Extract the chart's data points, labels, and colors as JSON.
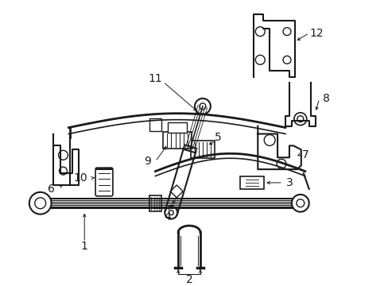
{
  "background_color": "#ffffff",
  "line_color": "#1a1a1a",
  "fig_width": 4.89,
  "fig_height": 3.6,
  "dpi": 100,
  "font_size": 9,
  "font_size_label": 10
}
